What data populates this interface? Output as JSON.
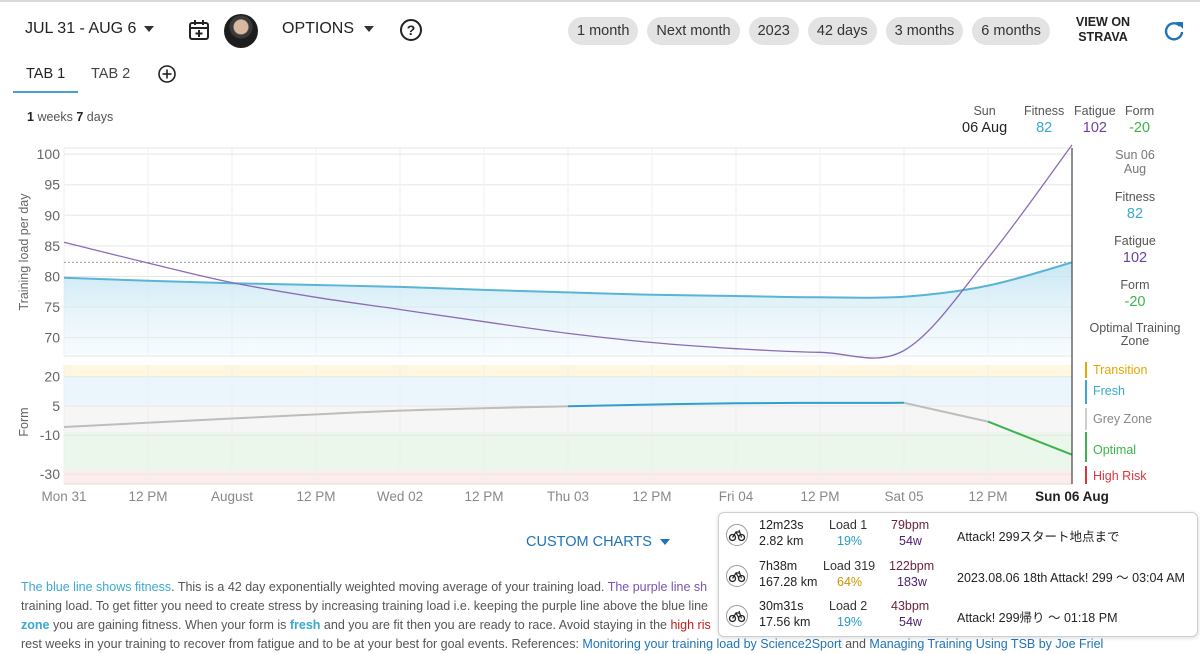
{
  "header": {
    "date_range": "JUL 31 - AUG 6",
    "options_label": "OPTIONS",
    "help_label": "?",
    "chips": [
      "1 month",
      "Next month",
      "2023",
      "42 days",
      "3 months",
      "6 months"
    ],
    "view_on_strava": "VIEW ON STRAVA"
  },
  "tabs": {
    "tab1": "TAB 1",
    "tab2": "TAB 2"
  },
  "period": {
    "weeks_num": "1",
    "weeks_word": "weeks",
    "days_num": "7",
    "days_word": "days"
  },
  "summary": {
    "day_label": "Sun",
    "date": "06 Aug",
    "fitness_label": "Fitness",
    "fitness_value": "82",
    "fatigue_label": "Fatigue",
    "fatigue_value": "102",
    "form_label": "Form",
    "form_value": "-20"
  },
  "sidebar": {
    "date_line1": "Sun 06",
    "date_line2": "Aug",
    "fitness_label": "Fitness",
    "fitness_value": "82",
    "fatigue_label": "Fatigue",
    "fatigue_value": "102",
    "form_label": "Form",
    "form_value": "-20",
    "optimal_zone_line1": "Optimal Training",
    "optimal_zone_line2": "Zone",
    "zones": [
      {
        "label": "Transition",
        "color": "#e6a700"
      },
      {
        "label": "Fresh",
        "color": "#3aa8d0"
      },
      {
        "label": "Grey Zone",
        "color": "#888888"
      },
      {
        "label": "Optimal",
        "color": "#3cb44b"
      },
      {
        "label": "High Risk",
        "color": "#d9363e"
      }
    ]
  },
  "chart_data": [
    {
      "type": "line",
      "title": "",
      "ylabel": "Training load per day",
      "ylim": [
        67,
        101
      ],
      "yticks": [
        100,
        95,
        90,
        85,
        80,
        75,
        70
      ],
      "x": [
        0,
        0.5,
        1,
        1.5,
        2,
        2.5,
        3,
        3.5,
        4,
        4.5,
        5,
        5.5,
        6
      ],
      "series": [
        {
          "name": "Fitness",
          "color": "#5ab4d6",
          "values": [
            79.8,
            79.3,
            78.9,
            78.6,
            78.3,
            77.8,
            77.4,
            77.0,
            76.8,
            76.6,
            76.7,
            78.5,
            82.3
          ]
        },
        {
          "name": "Fatigue",
          "color": "#8b6bb8",
          "values": [
            85.6,
            82.2,
            79.0,
            76.6,
            74.6,
            72.6,
            70.7,
            69.2,
            68.2,
            67.6,
            67.9,
            83.0,
            101.5
          ]
        }
      ],
      "reference_line": 82.3
    },
    {
      "type": "line",
      "title": "",
      "ylabel": "Form",
      "ylim": [
        -35,
        26
      ],
      "yticks": [
        20,
        5,
        -10,
        -30
      ],
      "x": [
        0,
        1,
        2,
        3,
        4,
        5,
        5.5,
        6
      ],
      "series": [
        {
          "name": "Form",
          "color": "#5ab4d6",
          "values": [
            -5.8,
            -1.4,
            2.6,
            4.9,
            6.4,
            6.6,
            -3.0,
            -20.0
          ]
        }
      ]
    }
  ],
  "xaxis": {
    "ticks": [
      "Mon 31",
      "12 PM",
      "August",
      "12 PM",
      "Wed 02",
      "12 PM",
      "Thu 03",
      "12 PM",
      "Fri 04",
      "12 PM",
      "Sat 05",
      "12 PM",
      "Sun 06 Aug"
    ]
  },
  "custom_charts_label": "CUSTOM CHARTS",
  "description": {
    "p1_blue": "The blue line shows fitness",
    "p1_rest": ". This is a 42 day exponentially weighted moving average of your training load. ",
    "p1_purple": "The purple line sh",
    "line2": "training load. To get fitter you need to create stress by increasing training load i.e. keeping the purple line above the blue line",
    "line3_zone": "zone",
    "line3_mid": " you are gaining fitness. When your form is ",
    "line3_fresh": "fresh",
    "line3_rest": " and you are fit then you are ready to race. Avoid staying in the ",
    "line3_highrisk": "high ris",
    "line4_start": "rest weeks in your training to recover from fatigue and to be at your best for goal events. References: ",
    "link1": "Monitoring your training load by Science2Sport",
    "and": " and ",
    "link2": "Managing Training Using TSB by Joe Friel"
  },
  "activities": [
    {
      "time": "12m23s",
      "distance": "2.82 km",
      "load": "Load 1",
      "load_pct": "19%",
      "hr": "79bpm",
      "power": "54w",
      "name": "Attack! 299スタート地点まで"
    },
    {
      "time": "7h38m",
      "distance": "167.28 km",
      "load": "Load 319",
      "load_pct": "64%",
      "hr": "122bpm",
      "power": "183w",
      "name": "2023.08.06 18th Attack! 299 ～ 03:04 AM"
    },
    {
      "time": "30m31s",
      "distance": "17.56 km",
      "load": "Load 2",
      "load_pct": "19%",
      "hr": "43bpm",
      "power": "54w",
      "name": "Attack! 299帰り ～ 01:18 PM"
    }
  ]
}
